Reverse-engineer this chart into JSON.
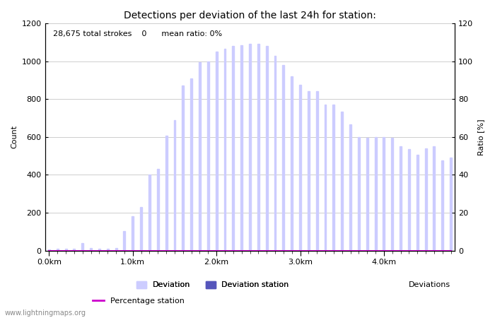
{
  "title": "Detections per deviation of the last 24h for station:",
  "annotation": "28,675 total strokes    0      mean ratio: 0%",
  "xlabel": "Deviations",
  "ylabel_left": "Count",
  "ylabel_right": "Ratio [%]",
  "ylim_left": [
    0,
    1200
  ],
  "ylim_right": [
    0,
    120
  ],
  "yticks_left": [
    0,
    200,
    400,
    600,
    800,
    1000,
    1200
  ],
  "yticks_right": [
    0,
    20,
    40,
    60,
    80,
    100,
    120
  ],
  "xtick_labels": [
    "0.0km",
    "1.0km",
    "2.0km",
    "3.0km",
    "4.0km"
  ],
  "xtick_positions": [
    0,
    10,
    20,
    30,
    40
  ],
  "bar_color": "#ccccff",
  "bar_station_color": "#5555bb",
  "bar_width": 0.25,
  "watermark": "www.lightningmaps.org",
  "deviation_values": [
    5,
    10,
    10,
    10,
    40,
    15,
    10,
    10,
    15,
    105,
    180,
    230,
    400,
    430,
    605,
    690,
    870,
    910,
    995,
    1000,
    1050,
    1065,
    1080,
    1085,
    1090,
    1090,
    1080,
    1030,
    980,
    920,
    875,
    840,
    840,
    770,
    770,
    735,
    665,
    600,
    595,
    600,
    600,
    595,
    550,
    535,
    505,
    540,
    550,
    475,
    490
  ],
  "station_values": [
    0,
    0,
    0,
    0,
    0,
    0,
    0,
    0,
    0,
    0,
    0,
    0,
    0,
    0,
    0,
    0,
    0,
    0,
    0,
    0,
    0,
    0,
    0,
    0,
    0,
    0,
    0,
    0,
    0,
    0,
    0,
    0,
    0,
    0,
    0,
    0,
    0,
    0,
    0,
    0,
    0,
    0,
    0,
    0,
    0,
    0,
    0,
    0,
    0
  ],
  "percentage_values": [
    0,
    0,
    0,
    0,
    0,
    0,
    0,
    0,
    0,
    0,
    0,
    0,
    0,
    0,
    0,
    0,
    0,
    0,
    0,
    0,
    0,
    0,
    0,
    0,
    0,
    0,
    0,
    0,
    0,
    0,
    0,
    0,
    0,
    0,
    0,
    0,
    0,
    0,
    0,
    0,
    0,
    0,
    0,
    0,
    0,
    0,
    0,
    0,
    0
  ],
  "percentage_color": "#cc00cc",
  "grid_color": "#bbbbbb",
  "bg_color": "#ffffff",
  "title_fontsize": 10,
  "axis_fontsize": 8,
  "tick_fontsize": 8,
  "annotation_fontsize": 8,
  "legend_fontsize": 8
}
